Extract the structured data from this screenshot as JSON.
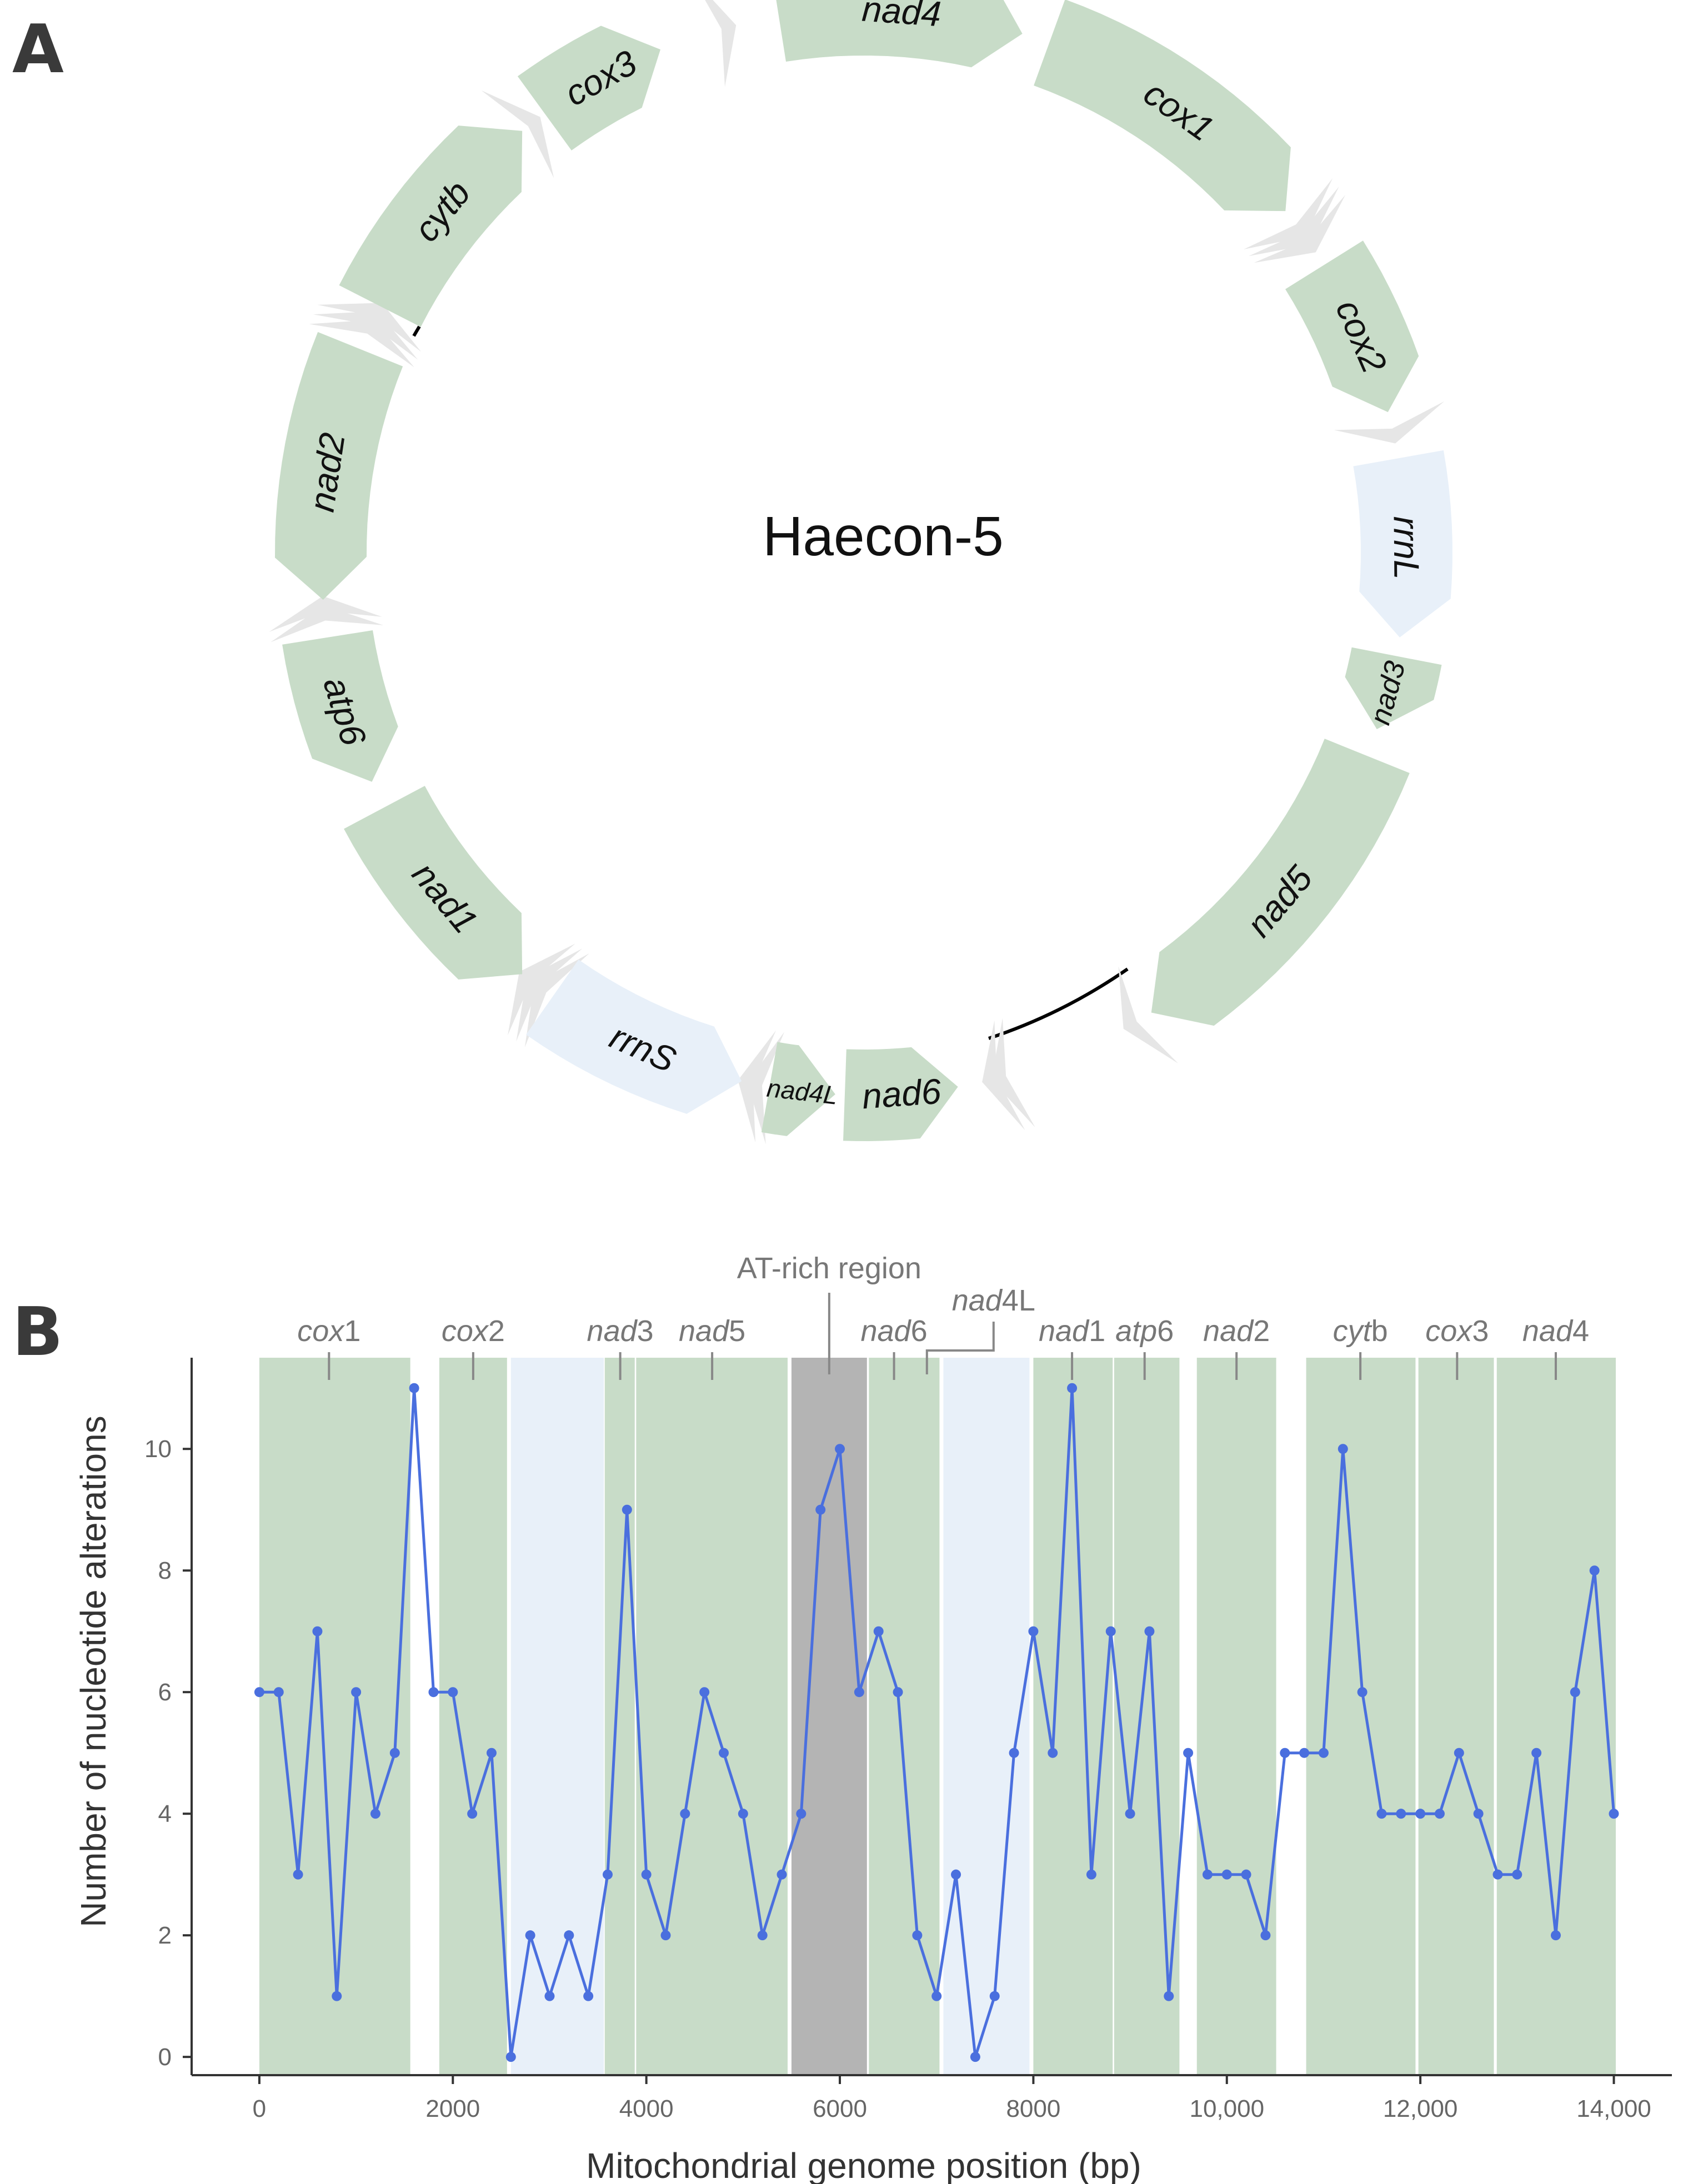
{
  "panel_labels": {
    "a": "A",
    "b": "B"
  },
  "colors": {
    "gene": "#c8dcc8",
    "rrna": "#e8f0f9",
    "trna": "#e6e6e6",
    "at_rich": "#b4b4b4",
    "line": "#4a6fde",
    "axis": "#333333",
    "gene_label": "#777777"
  },
  "genome_map": {
    "title": "Haecon-5",
    "genes": [
      {
        "label": "nad4",
        "type": "protein"
      },
      {
        "label": "cox1",
        "type": "protein"
      },
      {
        "label": "cox2",
        "type": "protein"
      },
      {
        "label": "rrnL",
        "type": "rRNA"
      },
      {
        "label": "nad3",
        "type": "protein"
      },
      {
        "label": "nad5",
        "type": "protein"
      },
      {
        "label": "nad6",
        "type": "protein"
      },
      {
        "label": "nad4L",
        "type": "protein"
      },
      {
        "label": "rrnS",
        "type": "rRNA"
      },
      {
        "label": "nad1",
        "type": "protein"
      },
      {
        "label": "atp6",
        "type": "protein"
      },
      {
        "label": "nad2",
        "type": "protein"
      },
      {
        "label": "cytb",
        "type": "protein"
      },
      {
        "label": "cox3",
        "type": "protein"
      }
    ]
  },
  "chart_data": {
    "type": "line",
    "title": "",
    "xlabel": "Mitochondrial genome position (bp)",
    "ylabel": "Number of nucleotide alterations",
    "xlim": [
      -700,
      14600
    ],
    "ylim": [
      -0.3,
      11.5
    ],
    "xticks": [
      0,
      2000,
      4000,
      6000,
      8000,
      10000,
      12000,
      14000
    ],
    "xtick_labels": [
      "0",
      "2000",
      "4000",
      "6000",
      "8000",
      "10,000",
      "12,000",
      "14,000"
    ],
    "yticks": [
      0,
      2,
      4,
      6,
      8,
      10
    ],
    "ytick_labels": [
      "0",
      "2",
      "4",
      "6",
      "8",
      "10"
    ],
    "regions": [
      {
        "start": 0,
        "end": 1560,
        "type": "protein"
      },
      {
        "start": 1860,
        "end": 2560,
        "type": "protein"
      },
      {
        "start": 2600,
        "end": 3560,
        "type": "rRNA"
      },
      {
        "start": 3570,
        "end": 3880,
        "type": "protein"
      },
      {
        "start": 3895,
        "end": 5460,
        "type": "protein"
      },
      {
        "start": 5500,
        "end": 6280,
        "type": "AT-rich"
      },
      {
        "start": 6300,
        "end": 7030,
        "type": "protein"
      },
      {
        "start": 7070,
        "end": 7960,
        "type": "rRNA"
      },
      {
        "start": 8000,
        "end": 8820,
        "type": "protein"
      },
      {
        "start": 8835,
        "end": 9510,
        "type": "protein"
      },
      {
        "start": 9690,
        "end": 10510,
        "type": "protein"
      },
      {
        "start": 10820,
        "end": 11950,
        "type": "protein"
      },
      {
        "start": 11980,
        "end": 12760,
        "type": "protein"
      },
      {
        "start": 12790,
        "end": 14020,
        "type": "protein"
      }
    ],
    "annotations": [
      {
        "italic": "cox",
        "rest": "1",
        "x": 720
      },
      {
        "italic": "cox",
        "rest": "2",
        "x": 2210
      },
      {
        "italic": "nad",
        "rest": "3",
        "x": 3730
      },
      {
        "italic": "nad",
        "rest": "5",
        "x": 4680
      },
      {
        "italic": "",
        "rest": "AT-rich region",
        "x": 5890
      },
      {
        "italic": "nad",
        "rest": "6",
        "x": 6560
      },
      {
        "italic": "nad",
        "rest": "4L",
        "x": 6900
      },
      {
        "italic": "nad",
        "rest": "1",
        "x": 8400
      },
      {
        "italic": "atp",
        "rest": "6",
        "x": 9150
      },
      {
        "italic": "nad",
        "rest": "2",
        "x": 10100
      },
      {
        "italic": "cyt",
        "rest": "b",
        "x": 11380
      },
      {
        "italic": "cox",
        "rest": "3",
        "x": 12380
      },
      {
        "italic": "nad",
        "rest": "4",
        "x": 13400
      }
    ],
    "series": [
      {
        "name": "Nucleotide alterations",
        "x": [
          0,
          200,
          400,
          600,
          800,
          1000,
          1200,
          1400,
          1600,
          1800,
          2000,
          2200,
          2400,
          2600,
          2800,
          3000,
          3200,
          3400,
          3600,
          3800,
          4000,
          4200,
          4400,
          4600,
          4800,
          5000,
          5200,
          5400,
          5600,
          5800,
          6000,
          6200,
          6400,
          6600,
          6800,
          7000,
          7200,
          7400,
          7600,
          7800,
          8000,
          8200,
          8400,
          8600,
          8800,
          9000,
          9200,
          9400,
          9600,
          9800,
          10000,
          10200,
          10400,
          10600,
          10800,
          11000,
          11200,
          11400,
          11600,
          11800,
          12000,
          12200,
          12400,
          12600,
          12800,
          13000,
          13200,
          13400,
          13600,
          13800,
          14000
        ],
        "values": [
          6,
          6,
          3,
          7,
          1,
          6,
          4,
          5,
          11,
          6,
          6,
          4,
          5,
          0,
          2,
          1,
          2,
          1,
          3,
          9,
          3,
          2,
          4,
          6,
          5,
          4,
          2,
          3,
          4,
          9,
          10,
          6,
          7,
          6,
          2,
          1,
          3,
          0,
          1,
          5,
          7,
          5,
          11,
          3,
          7,
          4,
          7,
          1,
          5,
          3,
          3,
          3,
          2,
          5,
          5,
          5,
          10,
          6,
          4,
          4,
          4,
          4,
          5,
          4,
          3,
          3,
          5,
          2,
          6,
          8,
          4
        ]
      }
    ]
  }
}
